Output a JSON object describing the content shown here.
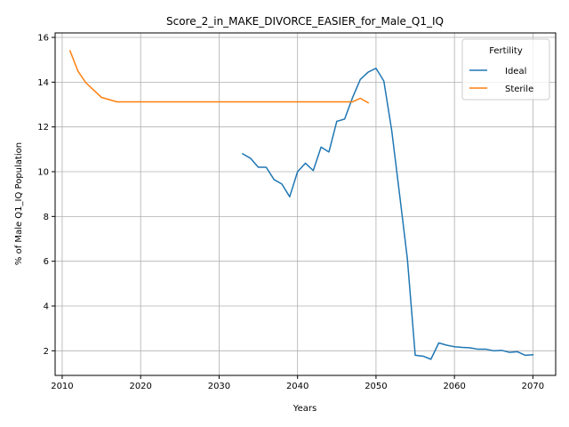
{
  "chart_data": {
    "type": "line",
    "title": "Score_2_in_MAKE_DIVORCE_EASIER_for_Male_Q1_IQ",
    "xlabel": "Years",
    "ylabel": "% of Male Q1_IQ Population",
    "xlim": [
      2009.1,
      2072.9
    ],
    "ylim": [
      0.9,
      16.2
    ],
    "xticks": [
      2010,
      2020,
      2030,
      2040,
      2050,
      2060,
      2070
    ],
    "yticks": [
      2,
      4,
      6,
      8,
      10,
      12,
      14,
      16
    ],
    "grid": true,
    "legend": {
      "title": "Fertility",
      "placement": "top-right"
    },
    "series": [
      {
        "name": "Ideal",
        "color": "#1f77b4",
        "x": [
          2033,
          2034,
          2035,
          2036,
          2037,
          2038,
          2039,
          2040,
          2041,
          2042,
          2043,
          2044,
          2045,
          2046,
          2047,
          2048,
          2049,
          2050,
          2051,
          2052,
          2053,
          2054,
          2055,
          2056,
          2057,
          2058,
          2059,
          2060,
          2061,
          2062,
          2063,
          2064,
          2065,
          2066,
          2067,
          2068,
          2069,
          2070
        ],
        "y": [
          10.8,
          10.6,
          10.2,
          10.2,
          9.65,
          9.45,
          8.88,
          10.0,
          10.38,
          10.05,
          11.1,
          10.88,
          12.25,
          12.35,
          13.3,
          14.12,
          14.45,
          14.62,
          14.05,
          11.85,
          9.0,
          6.1,
          1.8,
          1.76,
          1.62,
          2.35,
          2.25,
          2.18,
          2.15,
          2.13,
          2.07,
          2.07,
          2.0,
          2.02,
          1.93,
          1.96,
          1.8,
          1.82
        ]
      },
      {
        "name": "Sterile",
        "color": "#ff7f0e",
        "x": [
          2011,
          2012,
          2013,
          2014,
          2015,
          2016,
          2017,
          2018,
          2019,
          2020,
          2021,
          2022,
          2023,
          2024,
          2025,
          2026,
          2027,
          2028,
          2029,
          2030,
          2031,
          2032,
          2033,
          2034,
          2035,
          2036,
          2037,
          2038,
          2039,
          2040,
          2041,
          2042,
          2043,
          2044,
          2045,
          2046,
          2047,
          2048,
          2049
        ],
        "y": [
          15.4,
          14.5,
          13.98,
          13.65,
          13.32,
          13.22,
          13.12,
          13.12,
          13.12,
          13.12,
          13.12,
          13.12,
          13.12,
          13.12,
          13.12,
          13.12,
          13.12,
          13.12,
          13.12,
          13.12,
          13.12,
          13.12,
          13.12,
          13.12,
          13.12,
          13.12,
          13.12,
          13.12,
          13.12,
          13.12,
          13.12,
          13.12,
          13.12,
          13.12,
          13.12,
          13.12,
          13.12,
          13.28,
          13.08
        ]
      }
    ]
  }
}
